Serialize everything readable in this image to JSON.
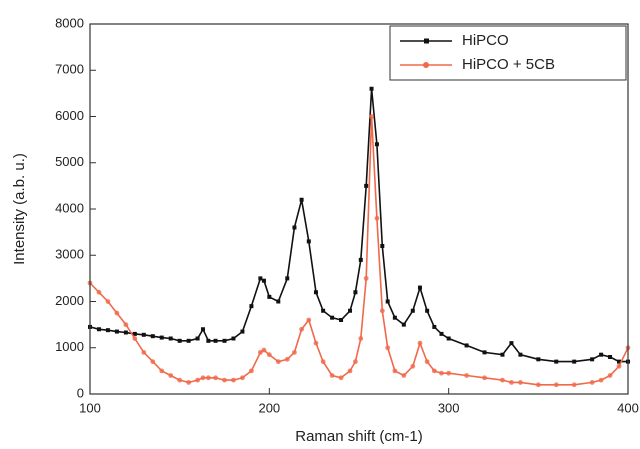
{
  "chart_data": {
    "type": "line",
    "xlabel": "Raman shift (cm-1)",
    "ylabel": "Intensity (a.b. u.)",
    "x": [
      100,
      105,
      110,
      115,
      120,
      125,
      130,
      135,
      140,
      145,
      150,
      155,
      160,
      163,
      166,
      170,
      175,
      180,
      185,
      190,
      195,
      197,
      200,
      205,
      210,
      214,
      218,
      222,
      226,
      230,
      235,
      240,
      245,
      248,
      251,
      254,
      257,
      260,
      263,
      266,
      270,
      275,
      280,
      284,
      288,
      292,
      296,
      300,
      310,
      320,
      330,
      335,
      340,
      350,
      360,
      370,
      380,
      385,
      390,
      395,
      400
    ],
    "series": [
      {
        "name": "HiPCO",
        "color": "#111111",
        "marker": "square",
        "values": [
          1450,
          1400,
          1380,
          1350,
          1330,
          1300,
          1280,
          1250,
          1220,
          1200,
          1150,
          1150,
          1200,
          1400,
          1150,
          1150,
          1150,
          1200,
          1350,
          1900,
          2500,
          2450,
          2100,
          2000,
          2500,
          3600,
          4200,
          3300,
          2200,
          1800,
          1650,
          1600,
          1800,
          2200,
          2900,
          4500,
          6600,
          5400,
          3200,
          2000,
          1650,
          1500,
          1800,
          2300,
          1800,
          1450,
          1300,
          1200,
          1050,
          900,
          850,
          1100,
          850,
          750,
          700,
          700,
          750,
          850,
          800,
          700,
          700
        ]
      },
      {
        "name": "HiPCO + 5CB",
        "color": "#f0694a",
        "marker": "circle",
        "values": [
          2400,
          2200,
          2000,
          1750,
          1500,
          1200,
          900,
          700,
          500,
          400,
          300,
          250,
          300,
          350,
          350,
          350,
          300,
          300,
          350,
          500,
          900,
          950,
          850,
          700,
          750,
          900,
          1400,
          1600,
          1100,
          700,
          400,
          350,
          500,
          700,
          1200,
          2500,
          6000,
          3800,
          1800,
          1000,
          500,
          400,
          600,
          1100,
          700,
          500,
          450,
          450,
          400,
          350,
          300,
          250,
          250,
          200,
          200,
          200,
          250,
          300,
          400,
          600,
          1000
        ]
      }
    ],
    "xlim": [
      100,
      400
    ],
    "xticks": [
      100,
      200,
      300,
      400
    ],
    "ylim": [
      0,
      8000
    ],
    "yticks": [
      0,
      1000,
      2000,
      3000,
      4000,
      5000,
      6000,
      7000,
      8000
    ],
    "legend": "upper right"
  }
}
